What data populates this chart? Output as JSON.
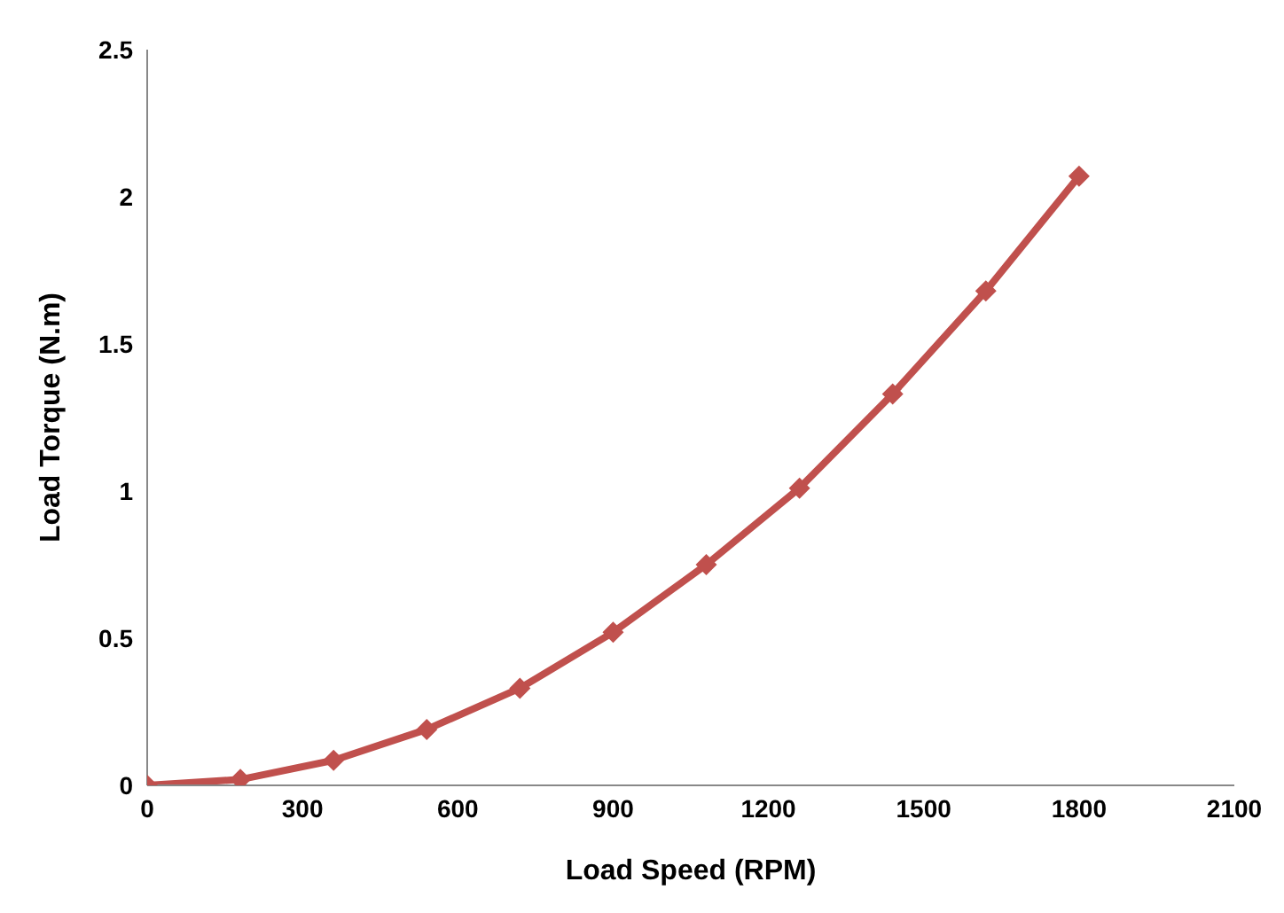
{
  "chart_data": {
    "type": "line",
    "xlabel": "Load Speed (RPM)",
    "ylabel": "Load  Torque (N.m)",
    "x": [
      0,
      180,
      360,
      540,
      720,
      900,
      1080,
      1260,
      1440,
      1620,
      1800
    ],
    "series": [
      {
        "color": "#c0504d",
        "values": [
          0,
          0.02,
          0.085,
          0.19,
          0.33,
          0.52,
          0.75,
          1.01,
          1.33,
          1.68,
          2.07
        ]
      }
    ],
    "xlim": [
      0,
      2100
    ],
    "xticks": [
      0,
      300,
      600,
      900,
      1200,
      1500,
      1800,
      2100
    ],
    "ylim": [
      0,
      2.5
    ],
    "yticks": [
      0,
      0.5,
      1,
      1.5,
      2,
      2.5
    ],
    "grid": false,
    "legend": false,
    "marker": "diamond",
    "line_style": "solid"
  }
}
